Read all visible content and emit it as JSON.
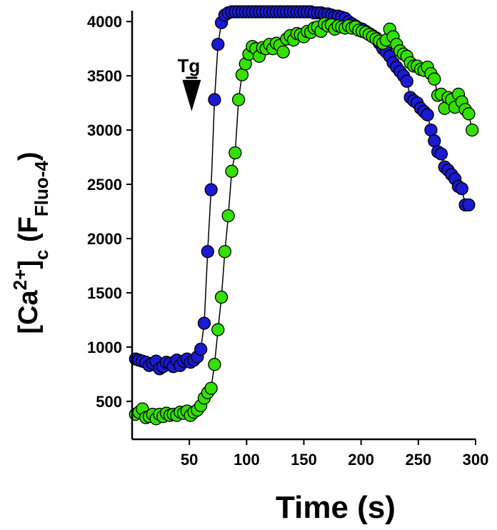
{
  "chart_data": {
    "type": "scatter",
    "xlabel": "Time (s)",
    "ylabel": {
      "open": "[Ca",
      "sup": "2+",
      "close": "]",
      "sub": "c",
      "paren_open": " (F",
      "fsub": "Fluo-4",
      "paren_close": ")"
    },
    "xlim": [
      0,
      300
    ],
    "ylim": [
      150,
      4100
    ],
    "xticks": [
      50,
      100,
      150,
      200,
      250,
      300
    ],
    "yticks": [
      500,
      1000,
      1500,
      2000,
      2500,
      3000,
      3500,
      4000
    ],
    "grid": false,
    "annotation": {
      "text": "Tg",
      "x": 52,
      "y": 3370
    },
    "series": [
      {
        "color": "#1a1ad0",
        "points": [
          [
            3,
            890
          ],
          [
            6,
            880
          ],
          [
            9,
            870
          ],
          [
            12,
            860
          ],
          [
            15,
            830
          ],
          [
            18,
            850
          ],
          [
            21,
            870
          ],
          [
            24,
            800
          ],
          [
            27,
            820
          ],
          [
            30,
            860
          ],
          [
            33,
            850
          ],
          [
            36,
            820
          ],
          [
            39,
            880
          ],
          [
            42,
            830
          ],
          [
            45,
            870
          ],
          [
            48,
            890
          ],
          [
            51,
            860
          ],
          [
            54,
            880
          ],
          [
            57,
            910
          ],
          [
            60,
            980
          ],
          [
            63,
            1220
          ],
          [
            66,
            1880
          ],
          [
            69,
            2450
          ],
          [
            72,
            3280
          ],
          [
            75,
            3790
          ],
          [
            78,
            3990
          ],
          [
            81,
            4060
          ],
          [
            84,
            4080
          ],
          [
            87,
            4090
          ],
          [
            90,
            4090
          ],
          [
            93,
            4090
          ],
          [
            96,
            4090
          ],
          [
            99,
            4090
          ],
          [
            102,
            4090
          ],
          [
            105,
            4090
          ],
          [
            108,
            4090
          ],
          [
            111,
            4090
          ],
          [
            114,
            4090
          ],
          [
            117,
            4090
          ],
          [
            120,
            4090
          ],
          [
            123,
            4090
          ],
          [
            126,
            4090
          ],
          [
            129,
            4090
          ],
          [
            132,
            4090
          ],
          [
            135,
            4090
          ],
          [
            138,
            4090
          ],
          [
            141,
            4090
          ],
          [
            144,
            4090
          ],
          [
            147,
            4090
          ],
          [
            150,
            4090
          ],
          [
            153,
            4090
          ],
          [
            156,
            4090
          ],
          [
            159,
            4080
          ],
          [
            162,
            4080
          ],
          [
            165,
            4080
          ],
          [
            168,
            4070
          ],
          [
            171,
            4070
          ],
          [
            174,
            4060
          ],
          [
            177,
            4050
          ],
          [
            180,
            4050
          ],
          [
            183,
            4040
          ],
          [
            186,
            4030
          ],
          [
            189,
            4000
          ],
          [
            192,
            3980
          ],
          [
            195,
            3960
          ],
          [
            198,
            3940
          ],
          [
            201,
            3930
          ],
          [
            204,
            3910
          ],
          [
            207,
            3890
          ],
          [
            210,
            3870
          ],
          [
            213,
            3850
          ],
          [
            216,
            3800
          ],
          [
            219,
            3750
          ],
          [
            222,
            3720
          ],
          [
            225,
            3680
          ],
          [
            228,
            3620
          ],
          [
            231,
            3580
          ],
          [
            234,
            3540
          ],
          [
            237,
            3500
          ],
          [
            240,
            3450
          ],
          [
            243,
            3300
          ],
          [
            246,
            3270
          ],
          [
            249,
            3250
          ],
          [
            252,
            3200
          ],
          [
            255,
            3170
          ],
          [
            258,
            3140
          ],
          [
            261,
            3000
          ],
          [
            264,
            2900
          ],
          [
            267,
            2800
          ],
          [
            270,
            2780
          ],
          [
            273,
            2660
          ],
          [
            276,
            2630
          ],
          [
            279,
            2590
          ],
          [
            282,
            2550
          ],
          [
            285,
            2480
          ],
          [
            288,
            2460
          ],
          [
            291,
            2310
          ],
          [
            294,
            2310
          ]
        ]
      },
      {
        "color": "#33e000",
        "points": [
          [
            3,
            380
          ],
          [
            6,
            400
          ],
          [
            9,
            430
          ],
          [
            12,
            350
          ],
          [
            15,
            360
          ],
          [
            18,
            380
          ],
          [
            21,
            340
          ],
          [
            24,
            380
          ],
          [
            27,
            360
          ],
          [
            30,
            390
          ],
          [
            33,
            370
          ],
          [
            36,
            380
          ],
          [
            39,
            370
          ],
          [
            42,
            400
          ],
          [
            45,
            390
          ],
          [
            48,
            410
          ],
          [
            51,
            370
          ],
          [
            54,
            400
          ],
          [
            57,
            420
          ],
          [
            60,
            460
          ],
          [
            63,
            530
          ],
          [
            66,
            580
          ],
          [
            69,
            620
          ],
          [
            72,
            840
          ],
          [
            75,
            1160
          ],
          [
            78,
            1460
          ],
          [
            81,
            1880
          ],
          [
            84,
            2210
          ],
          [
            87,
            2620
          ],
          [
            90,
            2790
          ],
          [
            93,
            3280
          ],
          [
            96,
            3510
          ],
          [
            99,
            3610
          ],
          [
            102,
            3700
          ],
          [
            105,
            3770
          ],
          [
            108,
            3750
          ],
          [
            111,
            3680
          ],
          [
            114,
            3760
          ],
          [
            117,
            3750
          ],
          [
            120,
            3790
          ],
          [
            123,
            3750
          ],
          [
            126,
            3800
          ],
          [
            129,
            3780
          ],
          [
            132,
            3720
          ],
          [
            135,
            3840
          ],
          [
            138,
            3870
          ],
          [
            141,
            3830
          ],
          [
            144,
            3890
          ],
          [
            147,
            3880
          ],
          [
            150,
            3860
          ],
          [
            153,
            3910
          ],
          [
            156,
            3900
          ],
          [
            159,
            3940
          ],
          [
            162,
            3950
          ],
          [
            165,
            3910
          ],
          [
            168,
            3980
          ],
          [
            171,
            3960
          ],
          [
            174,
            3970
          ],
          [
            177,
            3930
          ],
          [
            180,
            3960
          ],
          [
            183,
            3950
          ],
          [
            186,
            3940
          ],
          [
            189,
            3960
          ],
          [
            192,
            3940
          ],
          [
            195,
            3950
          ],
          [
            198,
            3920
          ],
          [
            201,
            3910
          ],
          [
            204,
            3900
          ],
          [
            207,
            3880
          ],
          [
            210,
            3860
          ],
          [
            213,
            3840
          ],
          [
            216,
            3820
          ],
          [
            219,
            3800
          ],
          [
            222,
            3830
          ],
          [
            225,
            3930
          ],
          [
            228,
            3860
          ],
          [
            231,
            3790
          ],
          [
            234,
            3730
          ],
          [
            237,
            3700
          ],
          [
            240,
            3680
          ],
          [
            243,
            3620
          ],
          [
            246,
            3590
          ],
          [
            249,
            3590
          ],
          [
            252,
            3560
          ],
          [
            255,
            3550
          ],
          [
            258,
            3580
          ],
          [
            261,
            3520
          ],
          [
            264,
            3470
          ],
          [
            267,
            3320
          ],
          [
            270,
            3330
          ],
          [
            273,
            3200
          ],
          [
            276,
            3300
          ],
          [
            279,
            3280
          ],
          [
            282,
            3210
          ],
          [
            285,
            3330
          ],
          [
            288,
            3260
          ],
          [
            291,
            3190
          ],
          [
            294,
            3150
          ],
          [
            297,
            3000
          ]
        ]
      }
    ]
  }
}
